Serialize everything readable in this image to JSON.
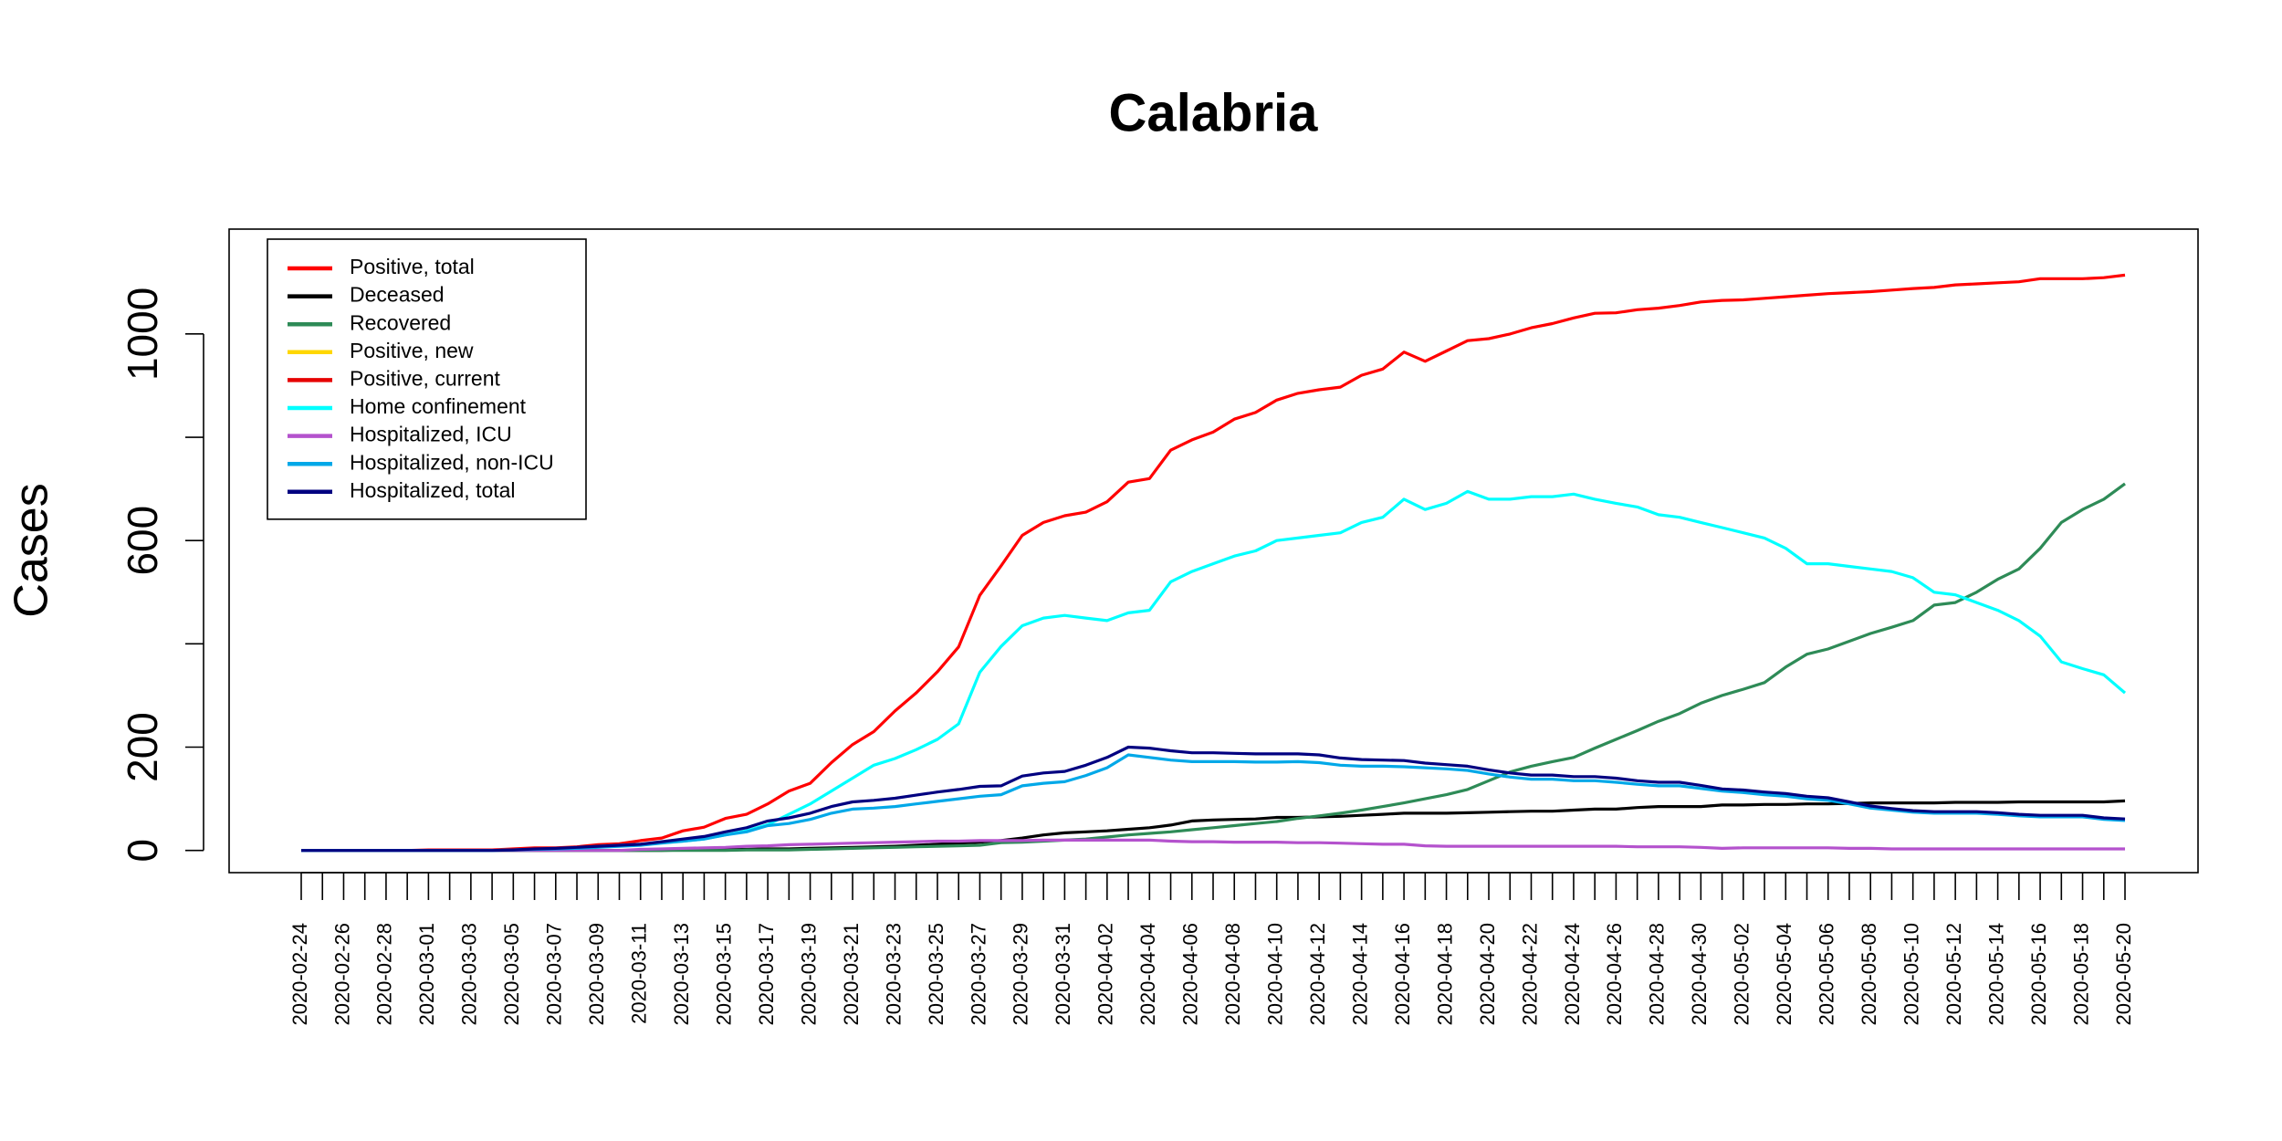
{
  "chart_data": {
    "type": "line",
    "title": "Calabria",
    "y_label": "Cases",
    "categories": [
      "2020-02-24",
      null,
      "2020-02-26",
      null,
      "2020-02-28",
      null,
      "2020-03-01",
      null,
      "2020-03-03",
      null,
      "2020-03-05",
      null,
      "2020-03-07",
      null,
      "2020-03-09",
      null,
      "2020-03-11",
      null,
      "2020-03-13",
      null,
      "2020-03-15",
      null,
      "2020-03-17",
      null,
      "2020-03-19",
      null,
      "2020-03-21",
      null,
      "2020-03-23",
      null,
      "2020-03-25",
      null,
      "2020-03-27",
      null,
      "2020-03-29",
      null,
      "2020-03-31",
      null,
      "2020-04-02",
      null,
      "2020-04-04",
      null,
      "2020-04-06",
      null,
      "2020-04-08",
      null,
      "2020-04-10",
      null,
      "2020-04-12",
      null,
      "2020-04-14",
      null,
      "2020-04-16",
      null,
      "2020-04-18",
      null,
      "2020-04-20",
      null,
      "2020-04-22",
      null,
      "2020-04-24",
      null,
      "2020-04-26",
      null,
      "2020-04-28",
      null,
      "2020-04-30",
      null,
      "2020-05-02",
      null,
      "2020-05-04",
      null,
      "2020-05-06",
      null,
      "2020-05-08",
      null,
      "2020-05-10",
      null,
      "2020-05-12",
      null,
      "2020-05-14",
      null,
      "2020-05-16",
      null,
      "2020-05-18",
      null,
      "2020-05-20"
    ],
    "ylim": [
      -43,
      1203
    ],
    "yticks": [
      0,
      200,
      {
        "value": 400,
        "label": null
      },
      600,
      {
        "value": 800,
        "label": null
      },
      1000
    ],
    "legend": "top-left",
    "series": [
      {
        "name": "Positive, total",
        "color": "#ff0000",
        "values": [
          0,
          0,
          0,
          0,
          0,
          0,
          1,
          1,
          1,
          1,
          3,
          5,
          5,
          7,
          11,
          13,
          19,
          24,
          38,
          45,
          62,
          70,
          90,
          115,
          130,
          170,
          205,
          230,
          270,
          305,
          346,
          394,
          494,
          551,
          610,
          635,
          648,
          655,
          675,
          713,
          720,
          775,
          795,
          810,
          835,
          848,
          872,
          885,
          892,
          897,
          920,
          932,
          965,
          947,
          967,
          987,
          991,
          1000,
          1012,
          1020,
          1031,
          1040,
          1041,
          1047,
          1050,
          1055,
          1062,
          1065,
          1066,
          1069,
          1072,
          1075,
          1078,
          1080,
          1082,
          1085,
          1088,
          1090,
          1095,
          1097,
          1099,
          1101,
          1107,
          1107,
          1107,
          1109,
          1114
        ]
      },
      {
        "name": "Deceased",
        "color": "#000000",
        "values": [
          0,
          0,
          0,
          0,
          0,
          0,
          0,
          0,
          0,
          0,
          0,
          0,
          0,
          0,
          0,
          0,
          0,
          0,
          1,
          1,
          2,
          2,
          3,
          3,
          4,
          5,
          6,
          7,
          8,
          10,
          12,
          14,
          16,
          19,
          24,
          30,
          34,
          36,
          38,
          41,
          44,
          49,
          57,
          59,
          60,
          61,
          64,
          64,
          65,
          66,
          68,
          70,
          72,
          72,
          72,
          73,
          74,
          75,
          76,
          76,
          78,
          80,
          80,
          83,
          85,
          85,
          85,
          88,
          88,
          89,
          89,
          90,
          90,
          91,
          92,
          92,
          92,
          92,
          93,
          93,
          93,
          94,
          94,
          94,
          94,
          94,
          96
        ]
      },
      {
        "name": "Recovered",
        "color": "#2e8b57",
        "values": [
          0,
          0,
          0,
          0,
          0,
          0,
          0,
          0,
          0,
          0,
          0,
          0,
          0,
          0,
          0,
          0,
          0,
          0,
          0,
          0,
          0,
          1,
          1,
          1,
          2,
          3,
          4,
          5,
          6,
          7,
          8,
          9,
          10,
          15,
          16,
          18,
          20,
          22,
          26,
          30,
          33,
          36,
          40,
          44,
          48,
          52,
          56,
          62,
          67,
          72,
          78,
          85,
          92,
          100,
          108,
          118,
          135,
          152,
          163,
          172,
          180,
          198,
          215,
          232,
          250,
          265,
          285,
          300,
          312,
          325,
          355,
          380,
          390,
          405,
          420,
          432,
          445,
          475,
          480,
          500,
          525,
          545,
          585,
          635,
          660,
          680,
          710
        ]
      },
      {
        "name": "Positive, new",
        "color": "#ffd700",
        "values": [
          null,
          null,
          null,
          null,
          null,
          null,
          null,
          null,
          null,
          null,
          null,
          null,
          null,
          null,
          null,
          null,
          null,
          null,
          null,
          null,
          null,
          null,
          null,
          null,
          null,
          null,
          null,
          null,
          null,
          null,
          null,
          null,
          null,
          null,
          null,
          null,
          null,
          null,
          null,
          null,
          null,
          null,
          null,
          null,
          null,
          null,
          null,
          null,
          null,
          null,
          null,
          null,
          null,
          null,
          null,
          null,
          null,
          null,
          null,
          null,
          null,
          null,
          null,
          null,
          null,
          null,
          null,
          null,
          null,
          null,
          null,
          null,
          null,
          null,
          null,
          null,
          null,
          null,
          null,
          null,
          null,
          null,
          null,
          null,
          null,
          null,
          null
        ]
      },
      {
        "name": "Positive, current",
        "color": "#e60000",
        "values": [
          null,
          null,
          null,
          null,
          null,
          null,
          null,
          null,
          null,
          null,
          null,
          null,
          null,
          null,
          null,
          null,
          null,
          null,
          null,
          null,
          null,
          null,
          null,
          null,
          null,
          null,
          null,
          null,
          null,
          null,
          null,
          null,
          null,
          null,
          null,
          null,
          null,
          null,
          null,
          null,
          null,
          null,
          null,
          null,
          null,
          null,
          null,
          null,
          null,
          null,
          null,
          null,
          null,
          null,
          null,
          null,
          null,
          null,
          null,
          null,
          null,
          null,
          null,
          null,
          null,
          null,
          null,
          null,
          null,
          null,
          null,
          null,
          null,
          null,
          null,
          null,
          null,
          null,
          null,
          null,
          null,
          null,
          null,
          null,
          null,
          null,
          null
        ]
      },
      {
        "name": "Home confinement",
        "color": "#00ffff",
        "values": [
          0,
          0,
          0,
          0,
          0,
          0,
          0,
          0,
          0,
          0,
          1,
          2,
          3,
          5,
          8,
          10,
          12,
          15,
          18,
          22,
          30,
          38,
          50,
          70,
          90,
          115,
          140,
          165,
          178,
          195,
          215,
          245,
          345,
          395,
          435,
          450,
          455,
          450,
          445,
          460,
          465,
          520,
          540,
          555,
          570,
          580,
          600,
          605,
          610,
          615,
          635,
          645,
          680,
          660,
          672,
          695,
          680,
          680,
          685,
          685,
          690,
          680,
          672,
          665,
          650,
          645,
          635,
          625,
          615,
          605,
          585,
          555,
          555,
          550,
          545,
          540,
          528,
          500,
          495,
          480,
          465,
          445,
          415,
          365,
          352,
          340,
          305
        ]
      },
      {
        "name": "Hospitalized, ICU",
        "color": "#b452cd",
        "values": [
          0,
          0,
          0,
          0,
          0,
          0,
          0,
          0,
          0,
          0,
          0,
          0,
          0,
          0,
          0,
          0,
          2,
          3,
          4,
          5,
          6,
          8,
          9,
          11,
          12,
          13,
          14,
          15,
          16,
          17,
          18,
          18,
          19,
          19,
          19,
          20,
          20,
          20,
          20,
          20,
          20,
          18,
          17,
          17,
          16,
          16,
          16,
          15,
          15,
          14,
          13,
          12,
          12,
          9,
          8,
          8,
          8,
          8,
          8,
          8,
          8,
          8,
          8,
          7,
          7,
          7,
          6,
          4,
          5,
          5,
          5,
          5,
          5,
          4,
          4,
          3,
          3,
          3,
          3,
          3,
          3,
          3,
          3,
          3,
          3,
          3,
          3
        ]
      },
      {
        "name": "Hospitalized, non-ICU",
        "color": "#00a8e8",
        "values": [
          0,
          0,
          0,
          0,
          0,
          0,
          0,
          0,
          0,
          0,
          1,
          2,
          3,
          4,
          6,
          8,
          10,
          14,
          18,
          22,
          30,
          36,
          48,
          52,
          60,
          72,
          80,
          82,
          85,
          90,
          95,
          100,
          105,
          108,
          125,
          130,
          133,
          145,
          160,
          185,
          180,
          175,
          172,
          172,
          172,
          171,
          171,
          172,
          170,
          165,
          163,
          163,
          162,
          160,
          158,
          155,
          148,
          142,
          138,
          138,
          135,
          135,
          132,
          128,
          125,
          125,
          120,
          115,
          112,
          108,
          105,
          100,
          97,
          90,
          82,
          78,
          74,
          72,
          72,
          72,
          70,
          67,
          65,
          65,
          65,
          60,
          58
        ]
      },
      {
        "name": "Hospitalized, total",
        "color": "#000080",
        "values": [
          0,
          0,
          0,
          0,
          0,
          0,
          0,
          0,
          0,
          0,
          1,
          3,
          4,
          6,
          8,
          10,
          12,
          17,
          22,
          27,
          36,
          44,
          57,
          63,
          72,
          85,
          94,
          97,
          101,
          107,
          113,
          118,
          124,
          125,
          144,
          150,
          153,
          165,
          180,
          200,
          198,
          193,
          189,
          189,
          188,
          187,
          187,
          187,
          185,
          179,
          176,
          175,
          174,
          169,
          166,
          163,
          156,
          150,
          146,
          146,
          143,
          143,
          140,
          135,
          132,
          132,
          126,
          119,
          117,
          113,
          110,
          105,
          102,
          94,
          86,
          81,
          77,
          75,
          75,
          75,
          73,
          70,
          68,
          68,
          68,
          63,
          61
        ]
      }
    ]
  }
}
